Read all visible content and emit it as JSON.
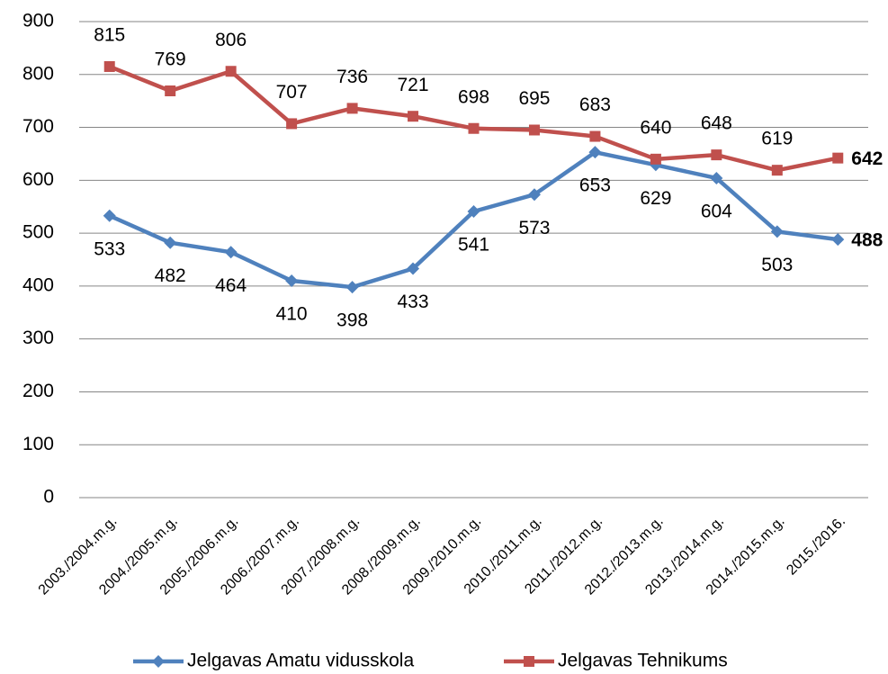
{
  "chart_data": {
    "type": "line",
    "categories": [
      "2003./2004.m.g.",
      "2004./2005.m.g.",
      "2005./2006.m.g.",
      "2006./2007.m.g.",
      "2007./2008.m.g.",
      "2008./2009.m.g.",
      "2009./2010.m.g.",
      "2010./2011.m.g.",
      "2011./2012.m.g.",
      "2012./2013.m.g.",
      "2013./2014.m.g.",
      "2014./2015.m.g.",
      "2015./2016."
    ],
    "series": [
      {
        "name": "Jelgavas Amatu vidusskola",
        "color": "#4f81bd",
        "values": [
          533,
          482,
          464,
          410,
          398,
          433,
          541,
          573,
          653,
          629,
          604,
          503,
          488
        ]
      },
      {
        "name": "Jelgavas Tehnikums",
        "color": "#c0504d",
        "values": [
          815,
          769,
          806,
          707,
          736,
          721,
          698,
          695,
          683,
          640,
          648,
          619,
          642
        ]
      }
    ],
    "ylim": [
      0,
      900
    ],
    "yticks": [
      0,
      100,
      200,
      300,
      400,
      500,
      600,
      700,
      800,
      900
    ],
    "grid": true,
    "legend": "bottom"
  }
}
